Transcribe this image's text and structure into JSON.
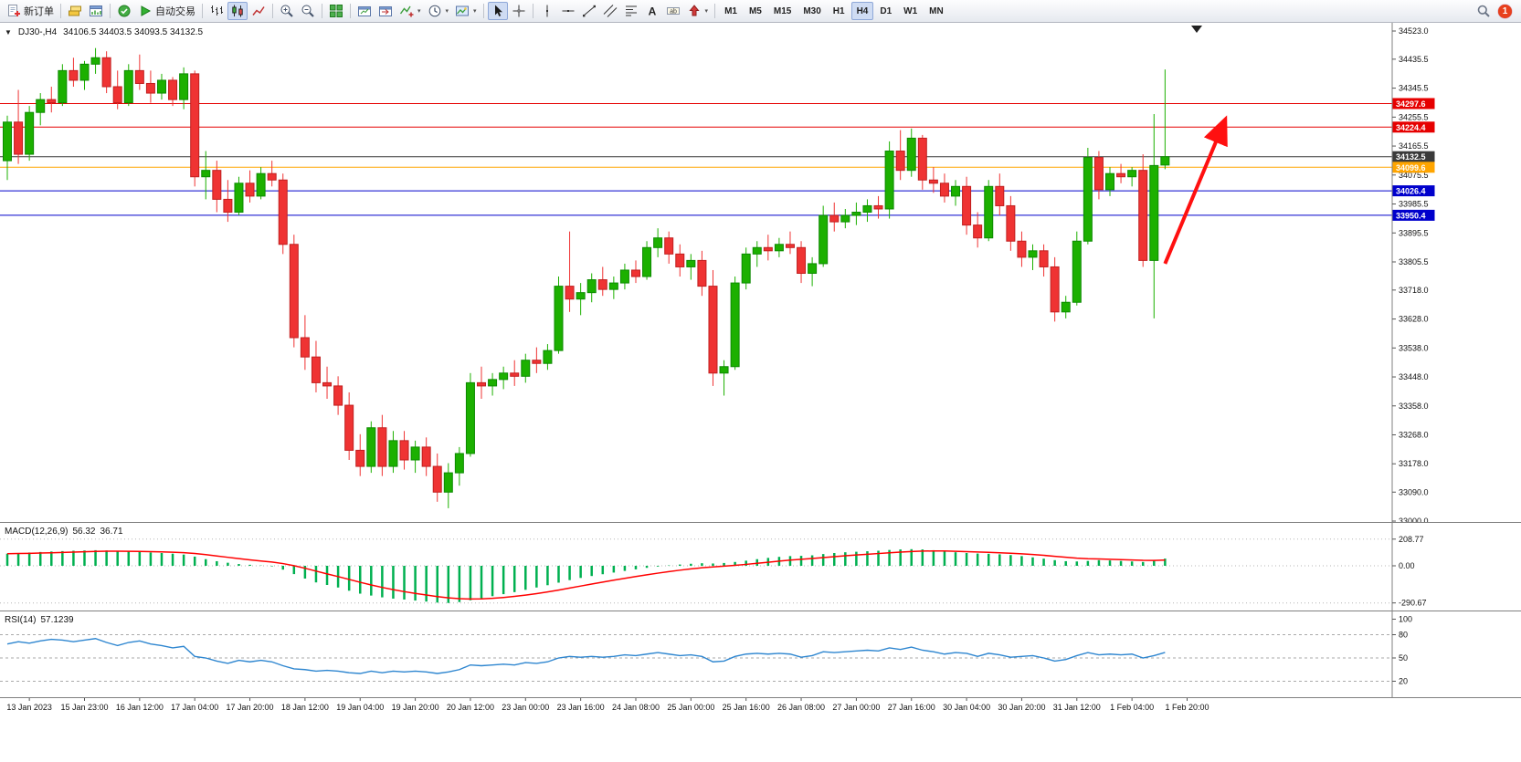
{
  "toolbar": {
    "buttons": [
      {
        "name": "new-order",
        "icon": "new-order",
        "label": "新订单"
      },
      {
        "sep": true
      },
      {
        "name": "market-watch",
        "icon": "layers"
      },
      {
        "name": "chart-list",
        "icon": "chart-window"
      },
      {
        "sep": true
      },
      {
        "name": "metaeditor",
        "icon": "green-circle"
      },
      {
        "name": "autotrading",
        "icon": "play",
        "label": "自动交易"
      },
      {
        "sep": true
      },
      {
        "name": "bar-chart-mode",
        "icon": "bars"
      },
      {
        "name": "candlestick-mode",
        "icon": "candles",
        "active": true
      },
      {
        "name": "line-chart-mode",
        "icon": "line-chart"
      },
      {
        "sep": true
      },
      {
        "name": "zoom-in",
        "icon": "zoom-in"
      },
      {
        "name": "zoom-out",
        "icon": "zoom-out"
      },
      {
        "sep": true
      },
      {
        "name": "tile-windows",
        "icon": "tile"
      },
      {
        "sep": true
      },
      {
        "name": "auto-scroll",
        "icon": "window-chart"
      },
      {
        "name": "chart-shift",
        "icon": "window-shift"
      },
      {
        "name": "indicators",
        "icon": "indicator-add",
        "dropdown": true
      },
      {
        "name": "periods",
        "icon": "clock",
        "dropdown": true
      },
      {
        "name": "templates",
        "icon": "template",
        "dropdown": true
      },
      {
        "sep": true
      },
      {
        "name": "cursor",
        "icon": "cursor",
        "active": true
      },
      {
        "name": "crosshair",
        "icon": "crosshair"
      },
      {
        "sep": true
      },
      {
        "name": "vertical-line",
        "icon": "vline"
      },
      {
        "name": "horizontal-line",
        "icon": "hline"
      },
      {
        "name": "trendline",
        "icon": "trendline"
      },
      {
        "name": "equidistant-channel",
        "icon": "channel"
      },
      {
        "name": "fibonacci",
        "icon": "fibo"
      },
      {
        "name": "text",
        "icon": "text-a"
      },
      {
        "name": "text-label",
        "icon": "label"
      },
      {
        "name": "arrows",
        "icon": "shapes",
        "dropdown": true
      },
      {
        "sep": true
      }
    ],
    "timeframes": [
      "M1",
      "M5",
      "M15",
      "M30",
      "H1",
      "H4",
      "D1",
      "W1",
      "MN"
    ],
    "active_timeframe": "H4",
    "notification_count": "1"
  },
  "chart": {
    "collapse_arrow": "▼",
    "symbol_period": "DJ30-,H4",
    "ohlc_text": "34106.5 34403.5 34093.5 34132.5",
    "open": "34106.5",
    "high": "34403.5",
    "low": "34093.5",
    "close": "34132.5"
  },
  "chart_data": {
    "type": "candlestick",
    "symbol": "DJ30-",
    "timeframe": "H4",
    "ylim": [
      33000,
      34523
    ],
    "up_color": "#1cb000",
    "down_color": "#ef3333",
    "up_border": "#0c8a00",
    "down_border": "#c01f1f",
    "price_axis": [
      34523.0,
      34435.5,
      34345.5,
      34255.5,
      34165.5,
      34075.5,
      33985.5,
      33895.5,
      33805.5,
      33718.0,
      33628.0,
      33538.0,
      33448.0,
      33358.0,
      33268.0,
      33178.0,
      33090.0,
      33000.0
    ],
    "time_labels": [
      "13 Jan 2023",
      "15 Jan 23:00",
      "16 Jan 12:00",
      "17 Jan 04:00",
      "17 Jan 20:00",
      "18 Jan 12:00",
      "19 Jan 04:00",
      "19 Jan 20:00",
      "20 Jan 12:00",
      "23 Jan 00:00",
      "23 Jan 16:00",
      "24 Jan 08:00",
      "25 Jan 00:00",
      "25 Jan 16:00",
      "26 Jan 08:00",
      "27 Jan 00:00",
      "27 Jan 16:00",
      "30 Jan 04:00",
      "30 Jan 20:00",
      "31 Jan 12:00",
      "1 Feb 04:00",
      "1 Feb 20:00"
    ],
    "candles": [
      [
        34120,
        34260,
        34060,
        34240
      ],
      [
        34240,
        34340,
        34110,
        34140
      ],
      [
        34140,
        34290,
        34120,
        34270
      ],
      [
        34270,
        34330,
        34230,
        34310
      ],
      [
        34310,
        34350,
        34270,
        34300
      ],
      [
        34300,
        34420,
        34290,
        34400
      ],
      [
        34400,
        34440,
        34350,
        34370
      ],
      [
        34370,
        34430,
        34340,
        34420
      ],
      [
        34420,
        34470,
        34390,
        34440
      ],
      [
        34440,
        34460,
        34330,
        34350
      ],
      [
        34350,
        34400,
        34280,
        34300
      ],
      [
        34300,
        34420,
        34290,
        34400
      ],
      [
        34400,
        34450,
        34340,
        34360
      ],
      [
        34360,
        34400,
        34300,
        34330
      ],
      [
        34330,
        34390,
        34310,
        34370
      ],
      [
        34370,
        34380,
        34290,
        34310
      ],
      [
        34310,
        34410,
        34280,
        34390
      ],
      [
        34390,
        34400,
        34040,
        34070
      ],
      [
        34070,
        34150,
        34000,
        34090
      ],
      [
        34090,
        34120,
        33960,
        34000
      ],
      [
        34000,
        34060,
        33930,
        33960
      ],
      [
        33960,
        34070,
        33950,
        34050
      ],
      [
        34050,
        34090,
        33990,
        34010
      ],
      [
        34010,
        34100,
        34000,
        34080
      ],
      [
        34080,
        34120,
        34040,
        34060
      ],
      [
        34060,
        34080,
        33830,
        33860
      ],
      [
        33860,
        33890,
        33540,
        33570
      ],
      [
        33570,
        33640,
        33470,
        33510
      ],
      [
        33510,
        33560,
        33400,
        33430
      ],
      [
        33430,
        33480,
        33380,
        33420
      ],
      [
        33420,
        33450,
        33330,
        33360
      ],
      [
        33360,
        33400,
        33190,
        33220
      ],
      [
        33220,
        33270,
        33140,
        33170
      ],
      [
        33170,
        33310,
        33150,
        33290
      ],
      [
        33290,
        33330,
        33140,
        33170
      ],
      [
        33170,
        33280,
        33150,
        33250
      ],
      [
        33250,
        33280,
        33160,
        33190
      ],
      [
        33190,
        33250,
        33150,
        33230
      ],
      [
        33230,
        33260,
        33140,
        33170
      ],
      [
        33170,
        33210,
        33060,
        33090
      ],
      [
        33090,
        33180,
        33040,
        33150
      ],
      [
        33150,
        33230,
        33110,
        33210
      ],
      [
        33210,
        33460,
        33200,
        33430
      ],
      [
        33430,
        33480,
        33380,
        33420
      ],
      [
        33420,
        33460,
        33390,
        33440
      ],
      [
        33440,
        33480,
        33410,
        33460
      ],
      [
        33460,
        33500,
        33420,
        33450
      ],
      [
        33450,
        33520,
        33430,
        33500
      ],
      [
        33500,
        33540,
        33460,
        33490
      ],
      [
        33490,
        33550,
        33470,
        33530
      ],
      [
        33530,
        33760,
        33520,
        33730
      ],
      [
        33730,
        33900,
        33650,
        33690
      ],
      [
        33690,
        33740,
        33640,
        33710
      ],
      [
        33710,
        33770,
        33680,
        33750
      ],
      [
        33750,
        33790,
        33700,
        33720
      ],
      [
        33720,
        33760,
        33690,
        33740
      ],
      [
        33740,
        33800,
        33720,
        33780
      ],
      [
        33780,
        33810,
        33740,
        33760
      ],
      [
        33760,
        33870,
        33750,
        33850
      ],
      [
        33850,
        33910,
        33820,
        33880
      ],
      [
        33880,
        33900,
        33800,
        33830
      ],
      [
        33830,
        33860,
        33760,
        33790
      ],
      [
        33790,
        33830,
        33750,
        33810
      ],
      [
        33810,
        33840,
        33700,
        33730
      ],
      [
        33730,
        33780,
        33420,
        33460
      ],
      [
        33460,
        33500,
        33390,
        33480
      ],
      [
        33480,
        33760,
        33470,
        33740
      ],
      [
        33740,
        33850,
        33720,
        33830
      ],
      [
        33830,
        33870,
        33790,
        33850
      ],
      [
        33850,
        33890,
        33810,
        33840
      ],
      [
        33840,
        33880,
        33820,
        33860
      ],
      [
        33860,
        33900,
        33830,
        33850
      ],
      [
        33850,
        33870,
        33740,
        33770
      ],
      [
        33770,
        33820,
        33730,
        33800
      ],
      [
        33800,
        33980,
        33790,
        33950
      ],
      [
        33950,
        33990,
        33900,
        33930
      ],
      [
        33930,
        33970,
        33910,
        33950
      ],
      [
        33950,
        33990,
        33920,
        33960
      ],
      [
        33960,
        34000,
        33930,
        33980
      ],
      [
        33980,
        34010,
        33940,
        33970
      ],
      [
        33970,
        34180,
        33940,
        34150
      ],
      [
        34150,
        34215,
        34060,
        34090
      ],
      [
        34090,
        34220,
        34070,
        34190
      ],
      [
        34190,
        34200,
        34030,
        34060
      ],
      [
        34060,
        34100,
        34020,
        34050
      ],
      [
        34050,
        34080,
        33990,
        34010
      ],
      [
        34010,
        34060,
        33980,
        34040
      ],
      [
        34040,
        34070,
        33890,
        33920
      ],
      [
        33920,
        33960,
        33850,
        33880
      ],
      [
        33880,
        34060,
        33870,
        34040
      ],
      [
        34040,
        34080,
        33950,
        33980
      ],
      [
        33980,
        34010,
        33840,
        33870
      ],
      [
        33870,
        33900,
        33790,
        33820
      ],
      [
        33820,
        33860,
        33780,
        33840
      ],
      [
        33840,
        33860,
        33760,
        33790
      ],
      [
        33790,
        33820,
        33620,
        33650
      ],
      [
        33650,
        33700,
        33630,
        33680
      ],
      [
        33680,
        33900,
        33670,
        33870
      ],
      [
        33870,
        34160,
        33860,
        34130
      ],
      [
        34130,
        34150,
        34000,
        34030
      ],
      [
        34030,
        34100,
        34010,
        34080
      ],
      [
        34080,
        34110,
        34050,
        34070
      ],
      [
        34070,
        34100,
        34040,
        34090
      ],
      [
        34090,
        34140,
        33790,
        33810
      ],
      [
        33810,
        34265,
        33630,
        34105
      ],
      [
        34106.5,
        34403.5,
        34093.5,
        34132.5
      ]
    ],
    "hlines": [
      {
        "price": 34297.6,
        "color": "#e60000",
        "label": "34297.6"
      },
      {
        "price": 34224.4,
        "color": "#e60000",
        "label": "34224.4"
      },
      {
        "price": 34132.5,
        "color": "#3a3a3a",
        "label": "34132.5"
      },
      {
        "price": 34099.6,
        "color": "#ffa500",
        "label": "34099.6"
      },
      {
        "price": 34026.4,
        "color": "#0000cc",
        "label": "34026.4"
      },
      {
        "price": 33950.4,
        "color": "#0000cc",
        "label": "33950.4"
      }
    ],
    "annotation_arrow": {
      "from_index": 105,
      "from_price": 33800,
      "to_index": 110.3,
      "to_price": 34235,
      "color": "#ff1010"
    },
    "indicators": [
      {
        "name": "MACD",
        "label": "MACD(12,26,9)",
        "value_main": "56.32",
        "value_signal": "36.71",
        "axis_labels": [
          208.77,
          0.0,
          -290.67
        ],
        "histogram_color": "#00b050",
        "signal_color": "#ff0000",
        "values": [
          95,
          100,
          104,
          108,
          112,
          115,
          118,
          120,
          122,
          120,
          116,
          112,
          108,
          104,
          100,
          95,
          88,
          72,
          52,
          36,
          24,
          14,
          8,
          2,
          -4,
          -30,
          -65,
          -100,
          -130,
          -150,
          -170,
          -195,
          -218,
          -233,
          -247,
          -257,
          -264,
          -272,
          -280,
          -288,
          -291,
          -284,
          -270,
          -254,
          -238,
          -222,
          -206,
          -188,
          -170,
          -152,
          -132,
          -112,
          -95,
          -80,
          -66,
          -53,
          -40,
          -28,
          -16,
          -6,
          3,
          10,
          16,
          20,
          18,
          22,
          30,
          40,
          52,
          62,
          70,
          76,
          78,
          82,
          92,
          100,
          106,
          110,
          114,
          118,
          124,
          128,
          130,
          128,
          122,
          114,
          106,
          100,
          96,
          94,
          90,
          84,
          76,
          66,
          56,
          44,
          36,
          34,
          38,
          44,
          42,
          38,
          34,
          30,
          40,
          56.32
        ]
      },
      {
        "name": "RSI",
        "label": "RSI(14)",
        "value": "57.1239",
        "axis_labels": [
          100,
          80,
          50,
          20
        ],
        "levels": [
          80,
          50,
          20
        ],
        "line_color": "#2e86d0",
        "values": [
          68,
          71,
          69,
          72,
          74,
          73,
          71,
          73,
          75,
          70,
          66,
          70,
          72,
          68,
          66,
          63,
          65,
          52,
          50,
          46,
          43,
          47,
          45,
          47,
          45,
          40,
          36,
          35,
          33,
          34,
          33,
          31,
          30,
          33,
          31,
          33,
          32,
          33,
          32,
          30,
          32,
          35,
          41,
          40,
          41,
          42,
          41,
          44,
          43,
          45,
          50,
          52,
          51,
          52,
          51,
          52,
          54,
          53,
          55,
          57,
          55,
          53,
          54,
          52,
          45,
          46,
          52,
          55,
          56,
          55,
          56,
          55,
          51,
          53,
          58,
          57,
          58,
          59,
          60,
          59,
          63,
          61,
          64,
          60,
          58,
          55,
          57,
          56,
          52,
          56,
          54,
          51,
          52,
          53,
          50,
          46,
          48,
          53,
          57,
          54,
          55,
          54,
          55,
          50,
          53,
          57.12
        ]
      }
    ]
  }
}
